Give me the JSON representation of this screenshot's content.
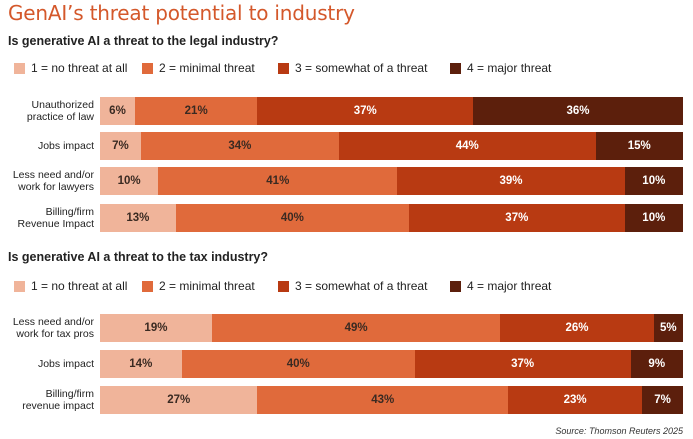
{
  "chart_data": [
    {
      "type": "bar",
      "orientation": "horizontal",
      "stacked": true,
      "title": "GenAI’s threat potential to industry",
      "subtitle": "Is generative AI a threat to the legal industry?",
      "categories": [
        "Unauthorized\npractice of law",
        "Jobs impact",
        "Less need and/or\nwork for lawyers",
        "Billing/firm\nRevenue Impact"
      ],
      "series": [
        {
          "name": "1 = no threat at all",
          "color": "#f0b49a",
          "values": [
            6,
            7,
            10,
            13
          ]
        },
        {
          "name": "2 = minimal threat",
          "color": "#e06a3b",
          "values": [
            21,
            34,
            41,
            40
          ]
        },
        {
          "name": "3 = somewhat of a threat",
          "color": "#b83a12",
          "values": [
            37,
            44,
            39,
            37
          ]
        },
        {
          "name": "4 = major threat",
          "color": "#5c1f0c",
          "values": [
            36,
            15,
            10,
            10
          ]
        }
      ],
      "value_suffix": "%",
      "xlim": [
        0,
        100
      ],
      "legend": "top"
    },
    {
      "type": "bar",
      "orientation": "horizontal",
      "stacked": true,
      "subtitle": "Is generative AI a threat to the tax industry?",
      "categories": [
        "Less need and/or\nwork for tax pros",
        "Jobs impact",
        "Billing/firm\nrevenue impact"
      ],
      "series": [
        {
          "name": "1 = no threat at all",
          "color": "#f0b49a",
          "values": [
            19,
            14,
            27
          ]
        },
        {
          "name": "2 = minimal threat",
          "color": "#e06a3b",
          "values": [
            49,
            40,
            43
          ]
        },
        {
          "name": "3 = somewhat of a threat",
          "color": "#b83a12",
          "values": [
            26,
            37,
            23
          ]
        },
        {
          "name": "4 = major threat",
          "color": "#5c1f0c",
          "values": [
            5,
            9,
            7
          ]
        }
      ],
      "value_suffix": "%",
      "xlim": [
        0,
        100
      ],
      "legend": "top"
    }
  ],
  "source": "Source: Thomson Reuters 2025"
}
